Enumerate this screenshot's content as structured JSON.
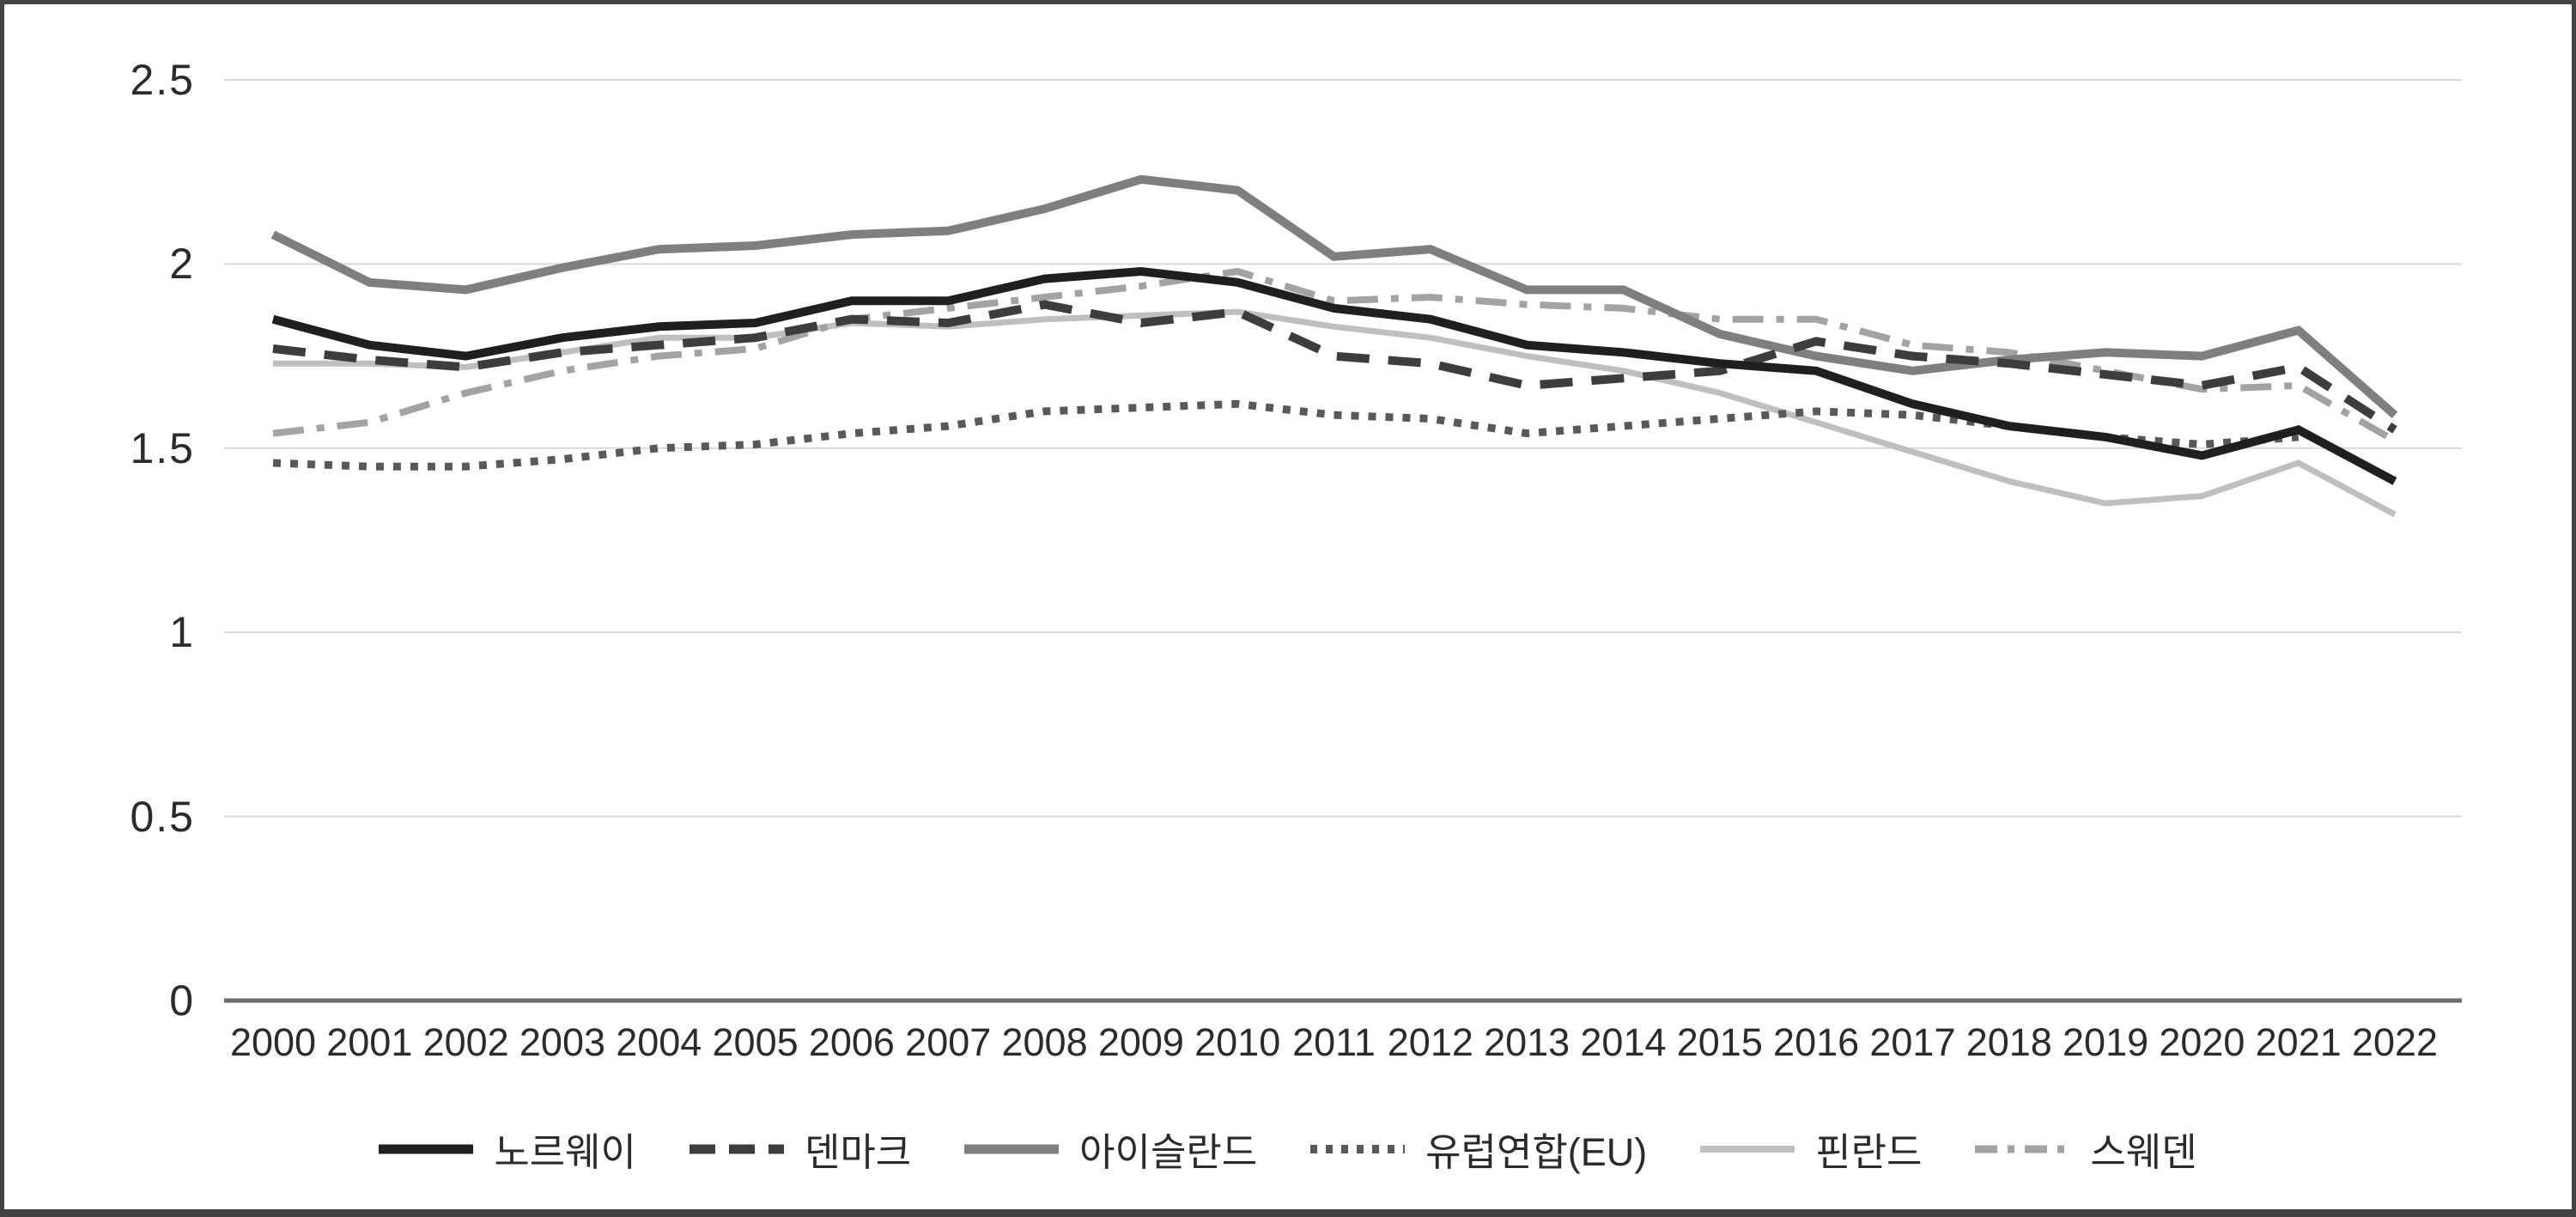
{
  "chart_data": {
    "type": "line",
    "title": "",
    "xlabel": "",
    "ylabel": "",
    "x": [
      2000,
      2001,
      2002,
      2003,
      2004,
      2005,
      2006,
      2007,
      2008,
      2009,
      2010,
      2011,
      2012,
      2013,
      2014,
      2015,
      2016,
      2017,
      2018,
      2019,
      2020,
      2021,
      2022
    ],
    "ylim": [
      0,
      2.5
    ],
    "yticks": [
      {
        "value": 0,
        "label": "0"
      },
      {
        "value": 0.5,
        "label": "0.5"
      },
      {
        "value": 1,
        "label": "1"
      },
      {
        "value": 1.5,
        "label": "1.5"
      },
      {
        "value": 2,
        "label": "2"
      },
      {
        "value": 2.5,
        "label": "2.5"
      }
    ],
    "grid": true,
    "legend_position": "bottom",
    "series": [
      {
        "id": "norway",
        "name": "노르웨이",
        "style": "solid",
        "color": "#1f1f1f",
        "width": 10,
        "values": [
          1.85,
          1.78,
          1.75,
          1.8,
          1.83,
          1.84,
          1.9,
          1.9,
          1.96,
          1.98,
          1.95,
          1.88,
          1.85,
          1.78,
          1.76,
          1.73,
          1.71,
          1.62,
          1.56,
          1.53,
          1.48,
          1.55,
          1.41
        ]
      },
      {
        "id": "denmark",
        "name": "덴마크",
        "style": "dashed",
        "color": "#3d3d3d",
        "width": 10,
        "values": [
          1.77,
          1.74,
          1.72,
          1.76,
          1.78,
          1.8,
          1.85,
          1.84,
          1.89,
          1.84,
          1.87,
          1.75,
          1.73,
          1.67,
          1.69,
          1.71,
          1.79,
          1.75,
          1.73,
          1.7,
          1.67,
          1.72,
          1.55
        ]
      },
      {
        "id": "iceland",
        "name": "아이슬란드",
        "style": "solid",
        "color": "#7f7f7f",
        "width": 10,
        "values": [
          2.08,
          1.95,
          1.93,
          1.99,
          2.04,
          2.05,
          2.08,
          2.09,
          2.15,
          2.23,
          2.2,
          2.02,
          2.04,
          1.93,
          1.93,
          1.81,
          1.75,
          1.71,
          1.74,
          1.76,
          1.75,
          1.82,
          1.59
        ]
      },
      {
        "id": "eu",
        "name": "유럽연합(EU)",
        "style": "dotted",
        "color": "#595959",
        "width": 9,
        "values": [
          1.46,
          1.45,
          1.45,
          1.47,
          1.5,
          1.51,
          1.54,
          1.56,
          1.6,
          1.61,
          1.62,
          1.59,
          1.58,
          1.54,
          1.56,
          1.58,
          1.6,
          1.59,
          1.56,
          1.53,
          1.51,
          1.53,
          null
        ]
      },
      {
        "id": "finland",
        "name": "핀란드",
        "style": "solid",
        "color": "#bfbfbf",
        "width": 7,
        "values": [
          1.73,
          1.73,
          1.72,
          1.76,
          1.8,
          1.8,
          1.84,
          1.83,
          1.85,
          1.86,
          1.87,
          1.83,
          1.8,
          1.75,
          1.71,
          1.65,
          1.57,
          1.49,
          1.41,
          1.35,
          1.37,
          1.46,
          1.32
        ]
      },
      {
        "id": "sweden",
        "name": "스웨덴",
        "style": "dashdot",
        "color": "#a3a3a3",
        "width": 8,
        "values": [
          1.54,
          1.57,
          1.65,
          1.71,
          1.75,
          1.77,
          1.85,
          1.88,
          1.91,
          1.94,
          1.98,
          1.9,
          1.91,
          1.89,
          1.88,
          1.85,
          1.85,
          1.78,
          1.76,
          1.71,
          1.66,
          1.67,
          1.52
        ]
      }
    ]
  },
  "colors": {
    "background": "#ffffff",
    "grid": "#d9d9d9",
    "axis": "#6b6b6b",
    "border": "#434343",
    "text": "#2b2b2b"
  }
}
